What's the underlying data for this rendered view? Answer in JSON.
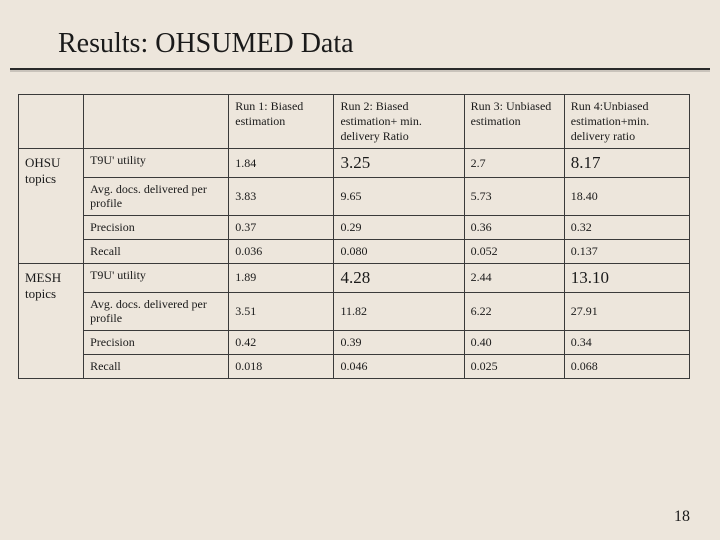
{
  "title": "Results: OHSUMED Data",
  "page_number": "18",
  "background_color": "#ede6dc",
  "border_color": "#3a3a3a",
  "headers": {
    "run1": "Run 1: Biased estimation",
    "run2": "Run 2: Biased estimation+ min. delivery Ratio",
    "run3": "Run 3: Unbiased estimation",
    "run4": "Run 4:Unbiased estimation+min. delivery ratio"
  },
  "groups": [
    {
      "label": "OHSU topics",
      "rows": [
        {
          "metric": "T9U' utility",
          "r1": "1.84",
          "r2": "3.25",
          "r3": "2.7",
          "r4": "8.17",
          "emph": [
            "r2",
            "r4"
          ]
        },
        {
          "metric": "Avg. docs. delivered per profile",
          "r1": "3.83",
          "r2": "9.65",
          "r3": "5.73",
          "r4": "18.40"
        },
        {
          "metric": "Precision",
          "r1": "0.37",
          "r2": "0.29",
          "r3": "0.36",
          "r4": "0.32"
        },
        {
          "metric": "Recall",
          "r1": "0.036",
          "r2": "0.080",
          "r3": "0.052",
          "r4": "0.137"
        }
      ]
    },
    {
      "label": "MESH topics",
      "rows": [
        {
          "metric": "T9U' utility",
          "r1": "1.89",
          "r2": "4.28",
          "r3": "2.44",
          "r4": "13.10",
          "emph": [
            "r2",
            "r4"
          ]
        },
        {
          "metric": "Avg. docs. delivered per profile",
          "r1": "3.51",
          "r2": "11.82",
          "r3": "6.22",
          "r4": "27.91"
        },
        {
          "metric": "Precision",
          "r1": "0.42",
          "r2": "0.39",
          "r3": "0.40",
          "r4": "0.34"
        },
        {
          "metric": "Recall",
          "r1": "0.018",
          "r2": "0.046",
          "r3": "0.025",
          "r4": "0.068"
        }
      ]
    }
  ]
}
